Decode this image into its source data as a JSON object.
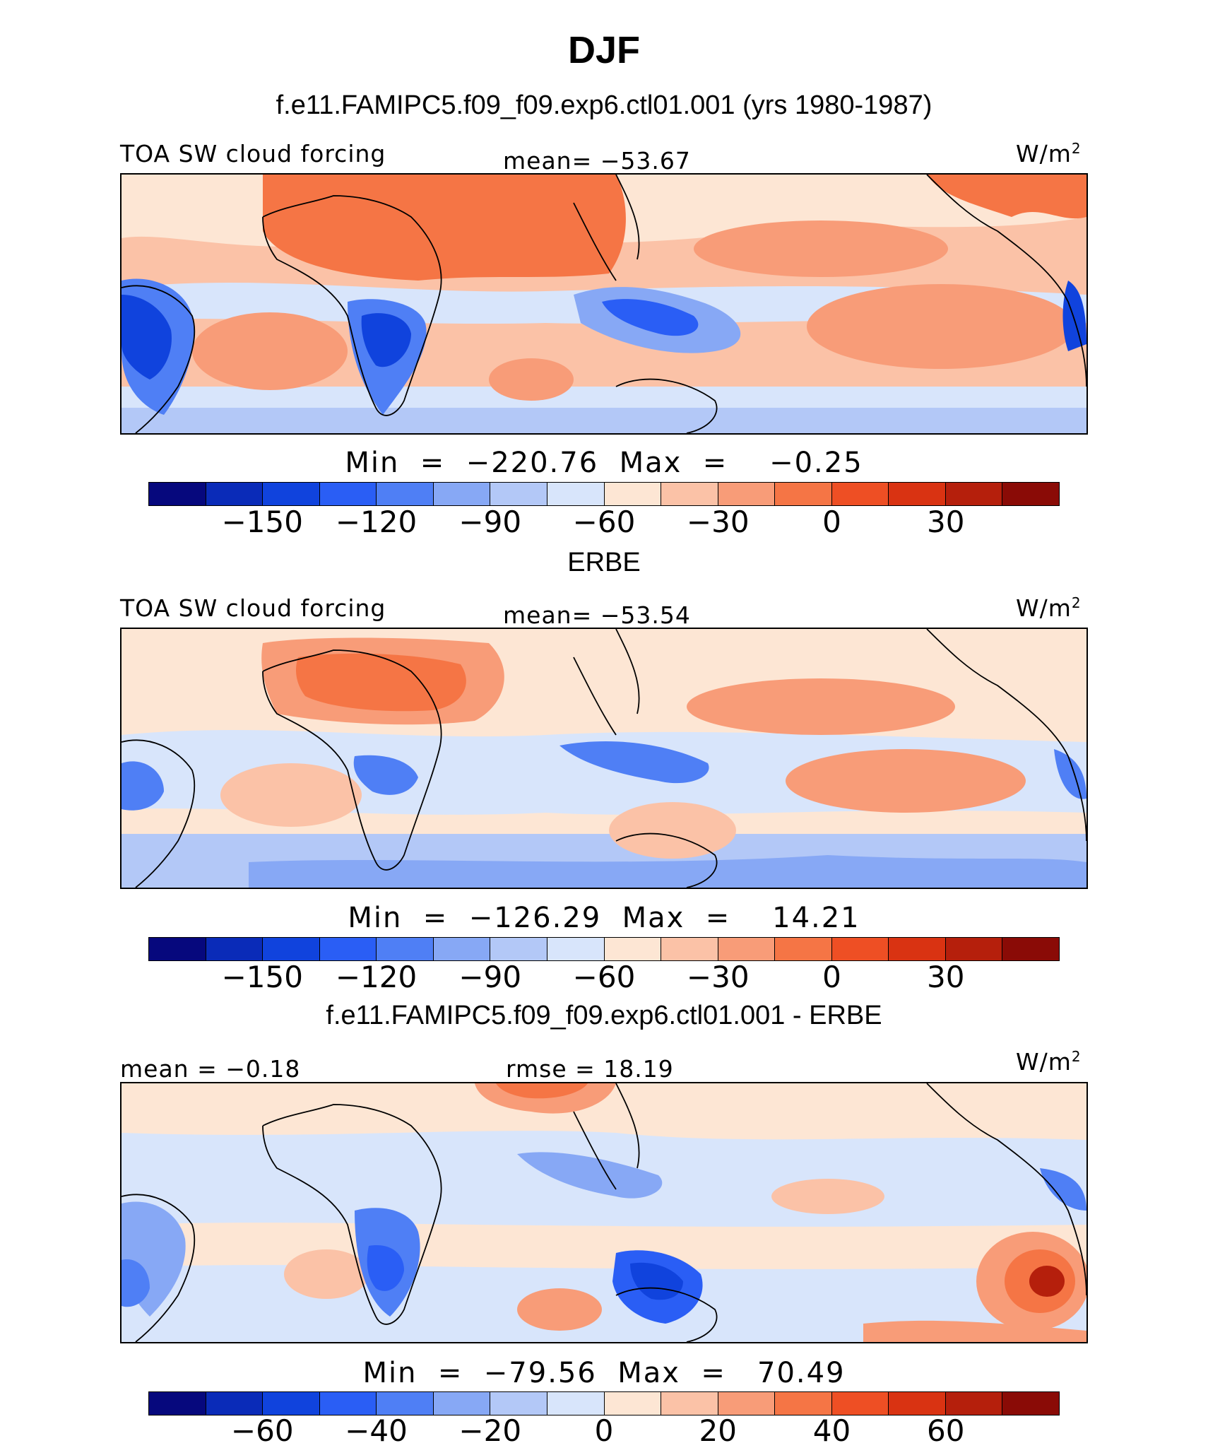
{
  "title": "DJF",
  "subtitle": "f.e11.FAMIPC5.f09_f09.exp6.ctl01.001 (yrs 1980-1987)",
  "palette_abs": [
    "#06087d",
    "#0a2bb8",
    "#1043dd",
    "#2a5ef5",
    "#4f7ff5",
    "#87a8f5",
    "#b3c8f7",
    "#d8e5fb",
    "#fde6d4",
    "#fbc2a7",
    "#f89c78",
    "#f57545",
    "#ee4f24",
    "#d93312",
    "#b51f0c",
    "#8a0b06"
  ],
  "panels": [
    {
      "left_label": "TOA SW cloud forcing",
      "center_label": "mean= −53.67",
      "units": "W/m",
      "units_sup": "2",
      "minmax": "Min  =  −220.76  Max  =    −0.25",
      "colorbar_ticks": [
        "−150",
        "−120",
        "−90",
        "−60",
        "−30",
        "0",
        "30"
      ]
    },
    {
      "heading": "ERBE",
      "left_label": "TOA SW cloud forcing",
      "center_label": "mean= −53.54",
      "units": "W/m",
      "units_sup": "2",
      "minmax": "Min  =  −126.29  Max  =    14.21",
      "colorbar_ticks": [
        "−150",
        "−120",
        "−90",
        "−60",
        "−30",
        "0",
        "30"
      ]
    },
    {
      "heading": "f.e11.FAMIPC5.f09_f09.exp6.ctl01.001 - ERBE",
      "left_label": "mean =  −0.18",
      "center_label": "rmse =   18.19",
      "units": "W/m",
      "units_sup": "2",
      "minmax": "Min  =  −79.56  Max  =   70.49",
      "colorbar_ticks": [
        "−60",
        "−40",
        "−20",
        "0",
        "20",
        "40",
        "60"
      ]
    }
  ]
}
